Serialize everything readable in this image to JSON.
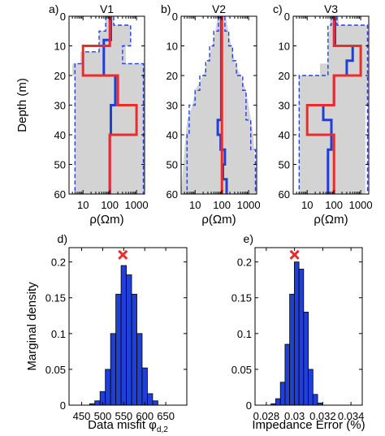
{
  "colors": {
    "envelope_fill": "#d3d3d3",
    "envelope_line": "#2244dd",
    "median": "#1f3fd6",
    "true_model": "#ee2b2b",
    "bar_fill": "#1f3fd6",
    "marker": "#ee2b2b"
  },
  "chart_data": [
    {
      "panel": "a)",
      "type": "line",
      "title": "V1",
      "xlabel": "ρ(Ωm)",
      "ylabel": "Depth (m)",
      "xscale": "log",
      "xlim": [
        3,
        2000
      ],
      "ylim": [
        60,
        0
      ],
      "xticks": [
        "10",
        "100",
        "1000"
      ],
      "xtick_values": [
        10,
        100,
        1000
      ],
      "yticks": [
        "0",
        "10",
        "20",
        "30",
        "40",
        "50",
        "60"
      ],
      "ytick_values": [
        0,
        10,
        20,
        30,
        40,
        50,
        60
      ],
      "envelope_left": [
        [
          70,
          0
        ],
        [
          70,
          5
        ],
        [
          40,
          5
        ],
        [
          40,
          12
        ],
        [
          8,
          12
        ],
        [
          8,
          16
        ],
        [
          4,
          16
        ],
        [
          4,
          20
        ],
        [
          5,
          20
        ],
        [
          5,
          60
        ]
      ],
      "envelope_right": [
        [
          140,
          0
        ],
        [
          140,
          3
        ],
        [
          600,
          3
        ],
        [
          600,
          10
        ],
        [
          400,
          10
        ],
        [
          400,
          16
        ],
        [
          2000,
          16
        ],
        [
          2000,
          60
        ]
      ],
      "series": [
        {
          "name": "",
          "role": "lower-bound",
          "values": [
            [
              70,
              0
            ],
            [
              70,
              5
            ],
            [
              40,
              5
            ],
            [
              40,
              12
            ],
            [
              10,
              12
            ],
            [
              10,
              16
            ],
            [
              5,
              16
            ],
            [
              5,
              20
            ],
            [
              5,
              60
            ]
          ]
        },
        {
          "name": "",
          "role": "upper-bound",
          "values": [
            [
              140,
              0
            ],
            [
              140,
              3
            ],
            [
              600,
              3
            ],
            [
              600,
              10
            ],
            [
              300,
              10
            ],
            [
              300,
              16
            ],
            [
              1800,
              16
            ],
            [
              1800,
              60
            ]
          ]
        },
        {
          "name": "",
          "role": "median",
          "values": [
            [
              110,
              0
            ],
            [
              110,
              8
            ],
            [
              60,
              8
            ],
            [
              60,
              20
            ],
            [
              160,
              20
            ],
            [
              160,
              30
            ],
            [
              110,
              30
            ],
            [
              110,
              40
            ],
            [
              100,
              40
            ],
            [
              100,
              60
            ]
          ]
        },
        {
          "name": "",
          "role": "true",
          "values": [
            [
              100,
              0
            ],
            [
              100,
              10
            ],
            [
              10,
              10
            ],
            [
              10,
              20
            ],
            [
              200,
              20
            ],
            [
              200,
              30
            ],
            [
              1000,
              30
            ],
            [
              1000,
              40
            ],
            [
              100,
              40
            ],
            [
              100,
              60
            ]
          ]
        }
      ]
    },
    {
      "panel": "b)",
      "type": "line",
      "title": "V2",
      "xlabel": "ρ(Ωm)",
      "ylabel": "",
      "xscale": "log",
      "xlim": [
        3,
        2000
      ],
      "ylim": [
        60,
        0
      ],
      "xticks": [
        "10",
        "100",
        "1000"
      ],
      "xtick_values": [
        10,
        100,
        1000
      ],
      "yticks": [
        "0",
        "10",
        "20",
        "30",
        "40",
        "50",
        "60"
      ],
      "ytick_values": [
        0,
        10,
        20,
        30,
        40,
        50,
        60
      ],
      "envelope_left": [
        [
          70,
          0
        ],
        [
          50,
          8
        ],
        [
          30,
          15
        ],
        [
          20,
          20
        ],
        [
          10,
          25
        ],
        [
          8,
          30
        ],
        [
          5,
          35
        ],
        [
          4,
          45
        ],
        [
          3,
          60
        ]
      ],
      "envelope_right": [
        [
          140,
          0
        ],
        [
          200,
          8
        ],
        [
          300,
          15
        ],
        [
          500,
          20
        ],
        [
          800,
          25
        ],
        [
          1000,
          30
        ],
        [
          1500,
          40
        ],
        [
          2000,
          60
        ]
      ],
      "series": [
        {
          "name": "",
          "role": "lower-bound",
          "values": [
            [
              75,
              0
            ],
            [
              75,
              5
            ],
            [
              50,
              5
            ],
            [
              50,
              10
            ],
            [
              35,
              10
            ],
            [
              35,
              15
            ],
            [
              25,
              15
            ],
            [
              25,
              20
            ],
            [
              15,
              20
            ],
            [
              15,
              25
            ],
            [
              10,
              25
            ],
            [
              10,
              30
            ],
            [
              6,
              30
            ],
            [
              6,
              40
            ],
            [
              5,
              40
            ],
            [
              5,
              60
            ]
          ]
        },
        {
          "name": "",
          "role": "upper-bound",
          "values": [
            [
              130,
              0
            ],
            [
              130,
              5
            ],
            [
              180,
              5
            ],
            [
              180,
              10
            ],
            [
              250,
              10
            ],
            [
              250,
              15
            ],
            [
              350,
              15
            ],
            [
              350,
              20
            ],
            [
              600,
              20
            ],
            [
              600,
              25
            ],
            [
              800,
              25
            ],
            [
              800,
              35
            ],
            [
              1200,
              35
            ],
            [
              1200,
              45
            ],
            [
              1800,
              45
            ],
            [
              1800,
              60
            ]
          ]
        },
        {
          "name": "",
          "role": "median",
          "values": [
            [
              95,
              0
            ],
            [
              95,
              35
            ],
            [
              70,
              35
            ],
            [
              70,
              40
            ],
            [
              90,
              40
            ],
            [
              90,
              45
            ],
            [
              130,
              45
            ],
            [
              130,
              50
            ],
            [
              110,
              50
            ],
            [
              110,
              55
            ],
            [
              150,
              55
            ],
            [
              150,
              60
            ]
          ]
        },
        {
          "name": "",
          "role": "true",
          "values": [
            [
              100,
              0
            ],
            [
              100,
              60
            ]
          ]
        }
      ]
    },
    {
      "panel": "c)",
      "type": "line",
      "title": "V3",
      "xlabel": "ρ(Ωm)",
      "ylabel": "",
      "xscale": "log",
      "xlim": [
        3,
        2000
      ],
      "ylim": [
        60,
        0
      ],
      "xticks": [
        "10",
        "100",
        "1000"
      ],
      "xtick_values": [
        10,
        100,
        1000
      ],
      "yticks": [
        "0",
        "10",
        "20",
        "30",
        "40",
        "50",
        "60"
      ],
      "ytick_values": [
        0,
        10,
        20,
        30,
        40,
        50,
        60
      ],
      "envelope_left": [
        [
          70,
          0
        ],
        [
          70,
          5
        ],
        [
          60,
          5
        ],
        [
          60,
          16
        ],
        [
          30,
          16
        ],
        [
          30,
          20
        ],
        [
          5,
          20
        ],
        [
          5,
          60
        ]
      ],
      "envelope_right": [
        [
          150,
          0
        ],
        [
          150,
          3
        ],
        [
          1800,
          3
        ],
        [
          1800,
          30
        ],
        [
          1500,
          30
        ],
        [
          1500,
          60
        ]
      ],
      "series": [
        {
          "name": "",
          "role": "lower-bound",
          "values": [
            [
              80,
              0
            ],
            [
              80,
              3
            ],
            [
              60,
              3
            ],
            [
              60,
              12
            ],
            [
              60,
              20
            ],
            [
              5,
              20
            ],
            [
              5,
              60
            ]
          ]
        },
        {
          "name": "",
          "role": "upper-bound",
          "values": [
            [
              130,
              0
            ],
            [
              130,
              3
            ],
            [
              1800,
              3
            ],
            [
              1800,
              60
            ]
          ]
        },
        {
          "name": "",
          "role": "median",
          "values": [
            [
              110,
              0
            ],
            [
              110,
              10
            ],
            [
              500,
              10
            ],
            [
              500,
              15
            ],
            [
              300,
              15
            ],
            [
              300,
              20
            ],
            [
              100,
              20
            ],
            [
              100,
              30
            ],
            [
              40,
              30
            ],
            [
              40,
              35
            ],
            [
              80,
              35
            ],
            [
              80,
              45
            ],
            [
              60,
              45
            ],
            [
              60,
              60
            ]
          ]
        },
        {
          "name": "",
          "role": "true",
          "values": [
            [
              100,
              0
            ],
            [
              100,
              10
            ],
            [
              1000,
              10
            ],
            [
              1000,
              20
            ],
            [
              100,
              20
            ],
            [
              100,
              30
            ],
            [
              10,
              30
            ],
            [
              10,
              40
            ],
            [
              100,
              40
            ],
            [
              100,
              60
            ]
          ]
        }
      ]
    },
    {
      "panel": "d)",
      "type": "bar",
      "xlabel": "Data misfit φ",
      "xlabel_sub": "d,2",
      "ylabel": "Marginal density",
      "xlim": [
        420,
        700
      ],
      "ylim": [
        0,
        0.22
      ],
      "xticks": [
        "450",
        "500",
        "550",
        "600",
        "650"
      ],
      "xtick_values": [
        450,
        500,
        550,
        600,
        650
      ],
      "yticks": [
        "0",
        "0.05",
        "0.1",
        "0.15",
        "0.2"
      ],
      "ytick_values": [
        0,
        0.05,
        0.1,
        0.15,
        0.2
      ],
      "bin_width": 12.5,
      "x": [
        475,
        487.5,
        500,
        512.5,
        525,
        537.5,
        550,
        562.5,
        575,
        587.5,
        600,
        612.5,
        625
      ],
      "values": [
        0.002,
        0.006,
        0.019,
        0.05,
        0.1,
        0.155,
        0.195,
        0.182,
        0.155,
        0.1,
        0.052,
        0.016,
        0.006
      ],
      "marker": {
        "x": 548,
        "y": 0.21,
        "symbol": "x"
      }
    },
    {
      "panel": "e)",
      "type": "bar",
      "xlabel": "Impedance Error (%)",
      "ylabel": "",
      "xlim": [
        0.0272,
        0.0348
      ],
      "ylim": [
        0,
        0.22
      ],
      "xticks": [
        "0.028",
        "0.03",
        "0.032",
        "0.034"
      ],
      "xtick_values": [
        0.028,
        0.03,
        0.032,
        0.034
      ],
      "yticks": [
        "0",
        "0.05",
        "0.1",
        "0.15",
        "0.2"
      ],
      "ytick_values": [
        0,
        0.05,
        0.1,
        0.15,
        0.2
      ],
      "bin_width": 0.00033,
      "x": [
        0.0285,
        0.02883,
        0.02916,
        0.02949,
        0.02982,
        0.03015,
        0.03048,
        0.03081,
        0.03114,
        0.03147,
        0.0318
      ],
      "values": [
        0.002,
        0.009,
        0.032,
        0.085,
        0.155,
        0.2,
        0.19,
        0.13,
        0.05,
        0.015,
        0.003
      ],
      "marker": {
        "x": 0.03,
        "y": 0.21,
        "symbol": "x"
      }
    }
  ]
}
